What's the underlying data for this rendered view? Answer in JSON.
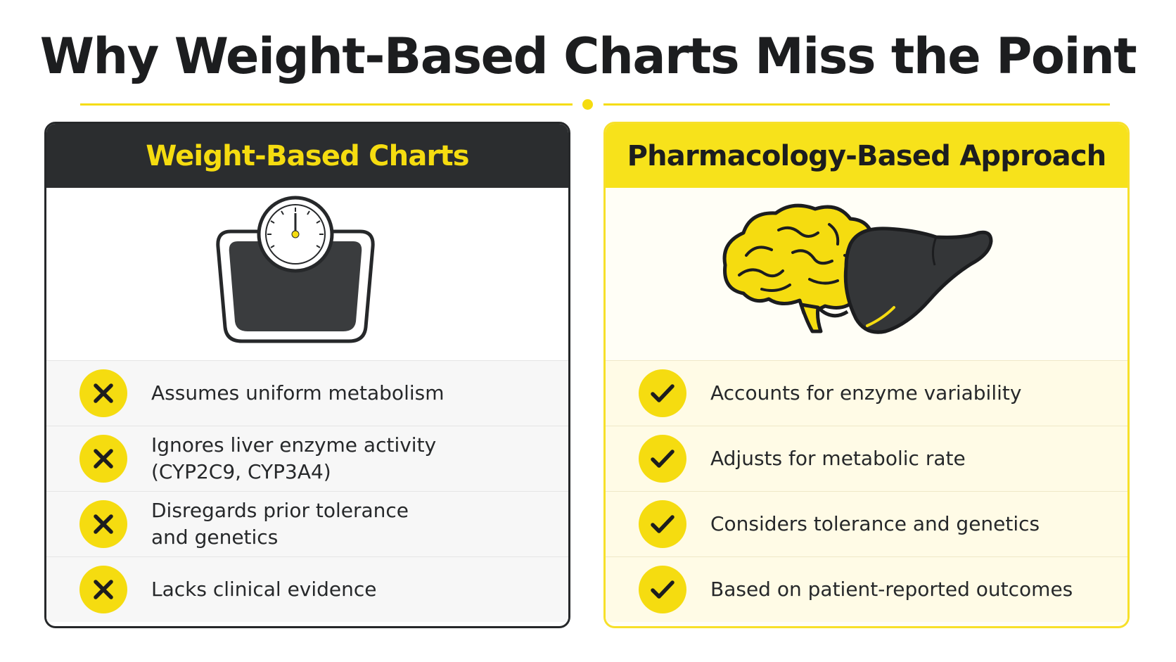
{
  "title": "Why Weight-Based Charts Miss the Point",
  "left_panel": {
    "header": "Weight-Based Charts",
    "icon": "bathroom-scale-icon",
    "items": [
      {
        "lines": [
          "Assumes uniform metabolism"
        ],
        "icon": "x-icon"
      },
      {
        "lines": [
          "Ignores liver enzyme activity",
          "(CYP2C9, CYP3A4)"
        ],
        "icon": "x-icon"
      },
      {
        "lines": [
          "Disregards prior tolerance",
          "and genetics"
        ],
        "icon": "x-icon"
      },
      {
        "lines": [
          "Lacks clinical evidence"
        ],
        "icon": "x-icon"
      }
    ]
  },
  "right_panel": {
    "header": "Pharmacology-Based Approach",
    "icon": "brain-and-liver-icon",
    "items": [
      {
        "lines": [
          "Accounts for enzyme variability"
        ],
        "icon": "check-icon"
      },
      {
        "lines": [
          "Adjusts for metabolic rate"
        ],
        "icon": "check-icon"
      },
      {
        "lines": [
          "Considers tolerance and genetics"
        ],
        "icon": "check-icon"
      },
      {
        "lines": [
          "Based on patient-reported outcomes"
        ],
        "icon": "check-icon"
      }
    ]
  },
  "colors": {
    "accent_yellow": "#f5dc10",
    "dark": "#2b2d2f",
    "light_row": "#f7f7f7",
    "light_yellow_row": "#fffbe6"
  }
}
